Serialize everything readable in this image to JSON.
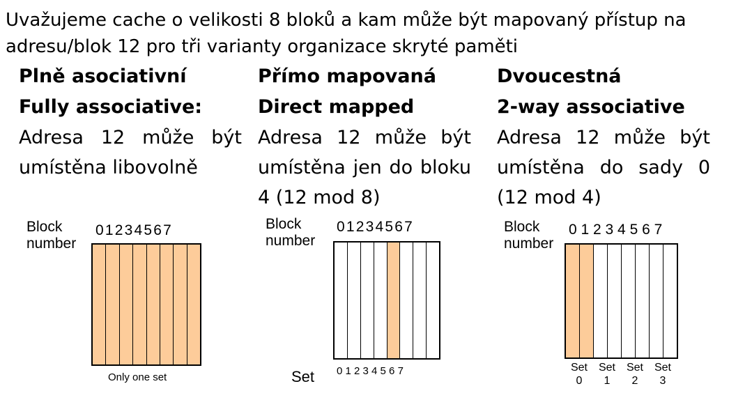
{
  "intro": {
    "line1": "Uvažujeme cache o velikosti 8 bloků a kam může být mapovaný přístup na",
    "line2": "adresu/blok 12 pro tři varianty organizace skryté paměti"
  },
  "columns": [
    {
      "title_cz": "Plně asociativní",
      "title_en": "Fully associative:",
      "text": "Adresa 12 může být umístěna libovolně",
      "diagram": {
        "block_label_1": "Block",
        "block_label_2": "number",
        "numbers": "01234567",
        "highlighted_blocks": [
          0,
          1,
          2,
          3,
          4,
          5,
          6,
          7
        ],
        "footer": "Only one set"
      }
    },
    {
      "title_cz": "Přímo mapovaná",
      "title_en": "Direct mapped",
      "text": "Adresa 12 může být umístěna jen do bloku 4 (12 mod 8)",
      "diagram": {
        "block_label_1": "Block",
        "block_label_2": "number",
        "numbers": "01234567",
        "highlighted_blocks": [
          4
        ],
        "set_label": "Set",
        "set_numbers": "0 1 2 3 4 5 6 7"
      }
    },
    {
      "title_cz": "Dvoucestná",
      "title_en": "2-way associative",
      "text": "Adresa 12 může být umístěna do sady 0 (12 mod 4)",
      "diagram": {
        "block_label_1": "Block",
        "block_label_2": "number",
        "numbers": "0 1 2 3 4 5 6 7",
        "highlighted_blocks": [
          0,
          1
        ],
        "sets": [
          {
            "label": "Set",
            "num": "0"
          },
          {
            "label": "Set",
            "num": "1"
          },
          {
            "label": "Set",
            "num": "2"
          },
          {
            "label": "Set",
            "num": "3"
          }
        ]
      }
    }
  ],
  "colors": {
    "highlight": "#fdcc9a",
    "border": "#000000"
  }
}
